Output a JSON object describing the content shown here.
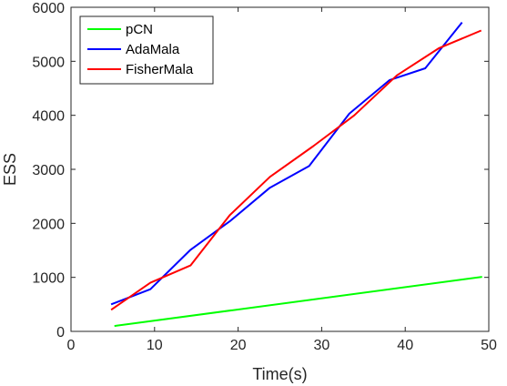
{
  "chart_data": {
    "type": "line",
    "xlabel": "Time(s)",
    "ylabel": "ESS",
    "xlim": [
      0,
      50
    ],
    "ylim": [
      0,
      6000
    ],
    "xticks": [
      0,
      10,
      20,
      30,
      40,
      50
    ],
    "yticks": [
      0,
      1000,
      2000,
      3000,
      4000,
      5000,
      6000
    ],
    "xtick_labels": [
      "0",
      "10",
      "20",
      "30",
      "40",
      "50"
    ],
    "ytick_labels": [
      "0",
      "1000",
      "2000",
      "3000",
      "4000",
      "5000",
      "6000"
    ],
    "grid": false,
    "legend_position": "top-left",
    "series": [
      {
        "name": "pCN",
        "color": "#00ff00",
        "points": [
          [
            5.2,
            100
          ],
          [
            49.2,
            1010
          ]
        ]
      },
      {
        "name": "AdaMala",
        "color": "#0000ff",
        "points": [
          [
            4.8,
            500
          ],
          [
            9.5,
            780
          ],
          [
            14.3,
            1510
          ],
          [
            19.1,
            2050
          ],
          [
            23.8,
            2660
          ],
          [
            28.5,
            3060
          ],
          [
            33.3,
            4030
          ],
          [
            38.1,
            4650
          ],
          [
            42.4,
            4870
          ],
          [
            46.8,
            5720
          ]
        ]
      },
      {
        "name": "FisherMala",
        "color": "#ff0000",
        "points": [
          [
            4.8,
            400
          ],
          [
            9.5,
            900
          ],
          [
            14.3,
            1220
          ],
          [
            19.0,
            2150
          ],
          [
            23.8,
            2860
          ],
          [
            29.0,
            3430
          ],
          [
            33.9,
            4000
          ],
          [
            39.0,
            4740
          ],
          [
            44.0,
            5240
          ],
          [
            49.1,
            5570
          ]
        ]
      }
    ]
  }
}
